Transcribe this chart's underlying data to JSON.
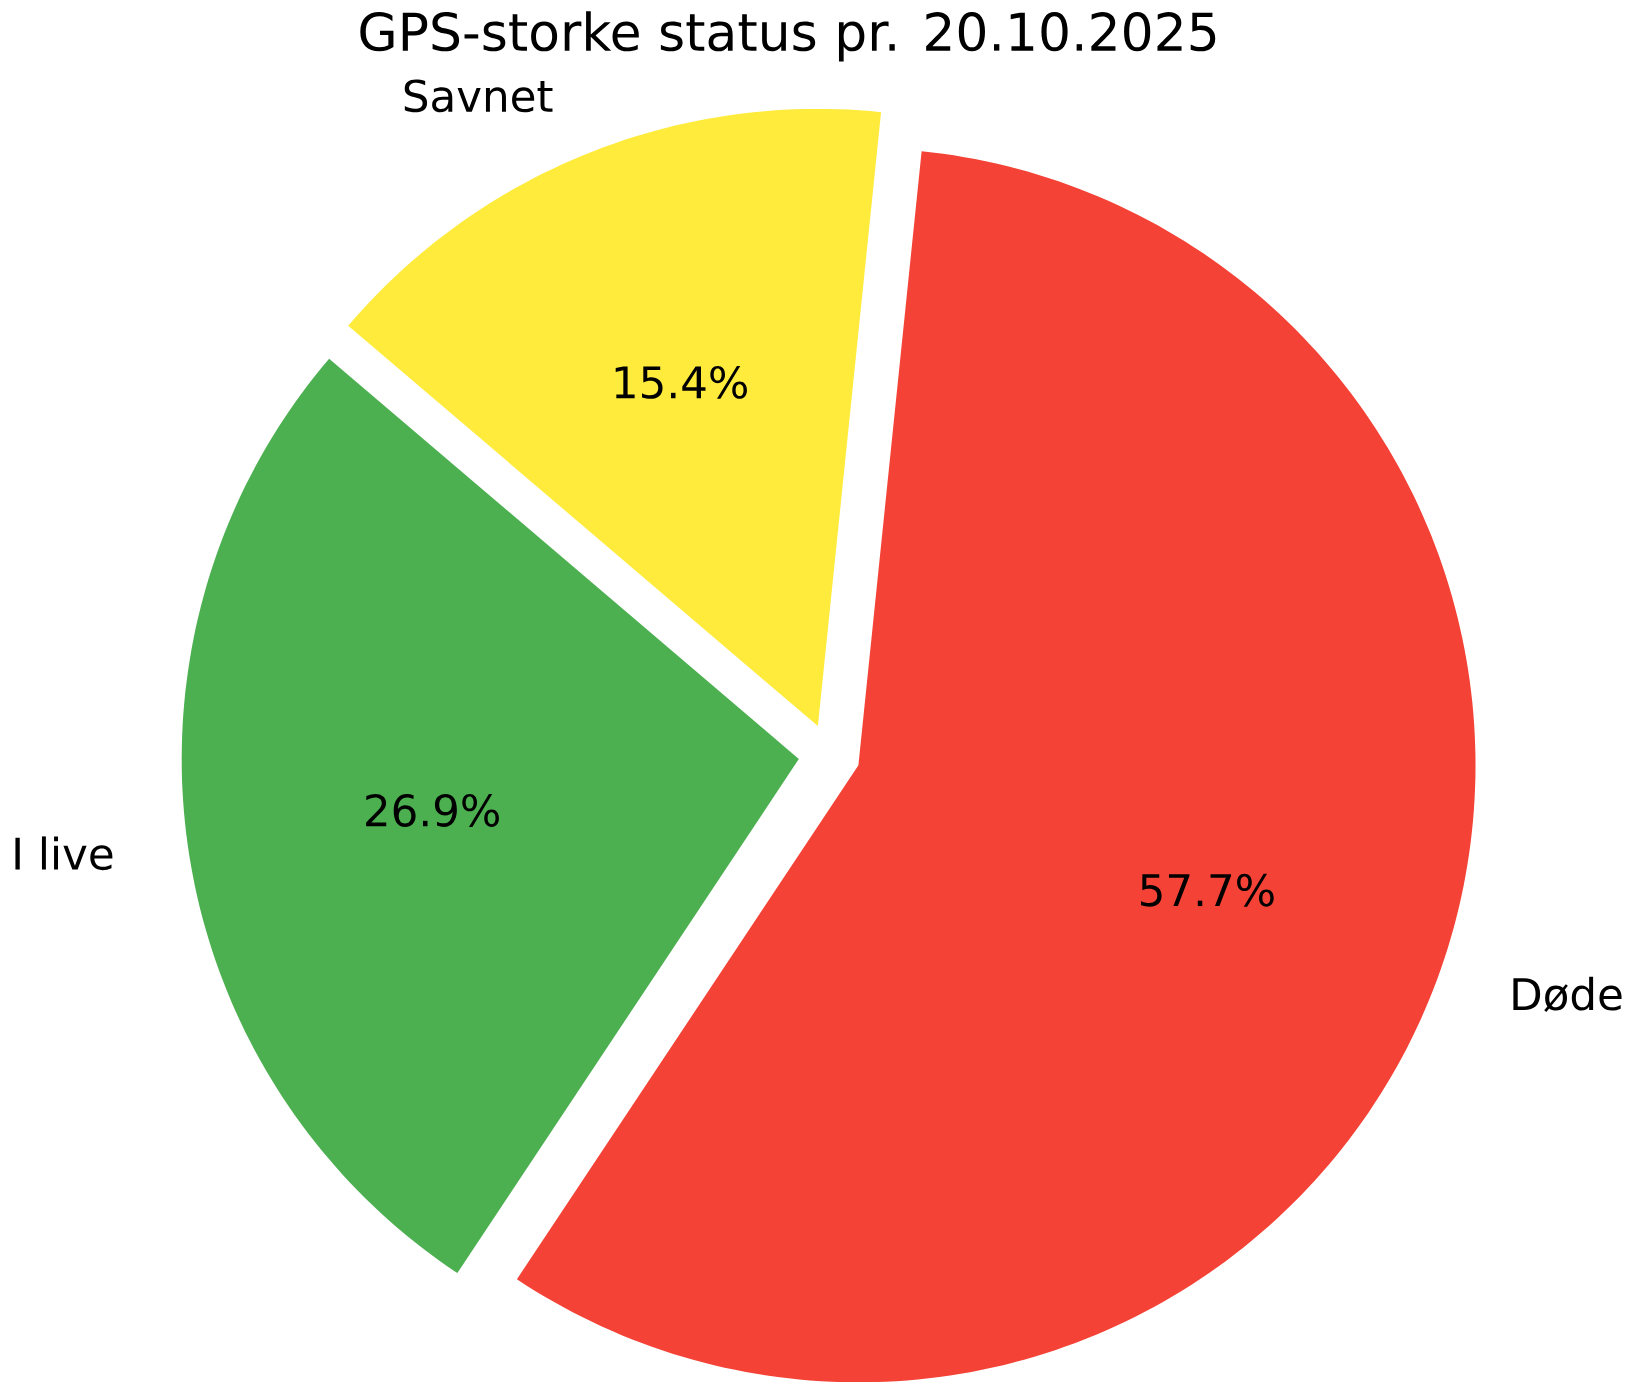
{
  "chart_data": {
    "type": "pie",
    "title": "GPS-storke status pr. 20.10.2025",
    "categories": [
      "Døde",
      "Savnet",
      "I live"
    ],
    "values": [
      57.7,
      15.4,
      26.9
    ],
    "value_labels": [
      "57.7%",
      "15.4%",
      "26.9%"
    ],
    "colors": [
      "#f44336",
      "#ffeb3b",
      "#4caf50"
    ]
  }
}
